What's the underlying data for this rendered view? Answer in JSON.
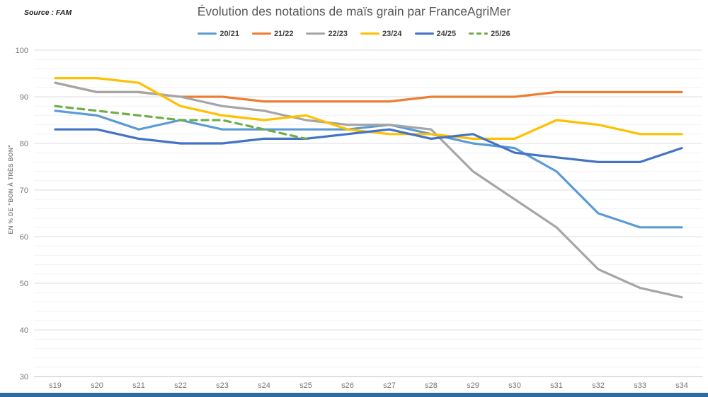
{
  "header": {
    "source_label": "Source : FAM",
    "title": "Évolution des notations de maïs grain par FranceAgriMer"
  },
  "bottom_bar_color": "#2e6da4",
  "chart_data": {
    "type": "line",
    "title": "Évolution des notations de maïs grain par FranceAgriMer",
    "source": "Source : FAM",
    "ylabel": "EN % DE \"BON À TRÈS BON\"",
    "xlabel": "",
    "x_categories": [
      "s19",
      "s20",
      "s21",
      "s22",
      "s23",
      "s24",
      "s25",
      "s26",
      "s27",
      "s28",
      "s29",
      "s30",
      "s31",
      "s32",
      "s33",
      "s34"
    ],
    "ylim": [
      30,
      100
    ],
    "ytick_major_step": 10,
    "ytick_minor_step": 2,
    "grid": "horizontal",
    "legend_position": "top",
    "series": [
      {
        "name": "20/21",
        "color": "#5B9BD5",
        "dash": false,
        "values": [
          87,
          86,
          83,
          85,
          83,
          83,
          83,
          83,
          84,
          82,
          80,
          79,
          74,
          65,
          62,
          62
        ]
      },
      {
        "name": "21/22",
        "color": "#ED7D31",
        "dash": false,
        "values": [
          93,
          91,
          91,
          90,
          90,
          89,
          89,
          89,
          89,
          90,
          90,
          90,
          91,
          91,
          91,
          91
        ]
      },
      {
        "name": "22/23",
        "color": "#A5A5A5",
        "dash": false,
        "values": [
          93,
          91,
          91,
          90,
          88,
          87,
          85,
          84,
          84,
          83,
          74,
          68,
          62,
          53,
          49,
          47
        ]
      },
      {
        "name": "23/24",
        "color": "#FFC000",
        "dash": false,
        "values": [
          94,
          94,
          93,
          88,
          86,
          85,
          86,
          83,
          82,
          82,
          81,
          81,
          85,
          84,
          82,
          82
        ]
      },
      {
        "name": "24/25",
        "color": "#4472C4",
        "dash": false,
        "values": [
          83,
          83,
          81,
          80,
          80,
          81,
          81,
          82,
          83,
          81,
          82,
          78,
          77,
          76,
          76,
          79
        ]
      },
      {
        "name": "25/26",
        "color": "#70AD47",
        "dash": true,
        "values": [
          88,
          87,
          86,
          85,
          85,
          83,
          81
        ]
      }
    ]
  }
}
